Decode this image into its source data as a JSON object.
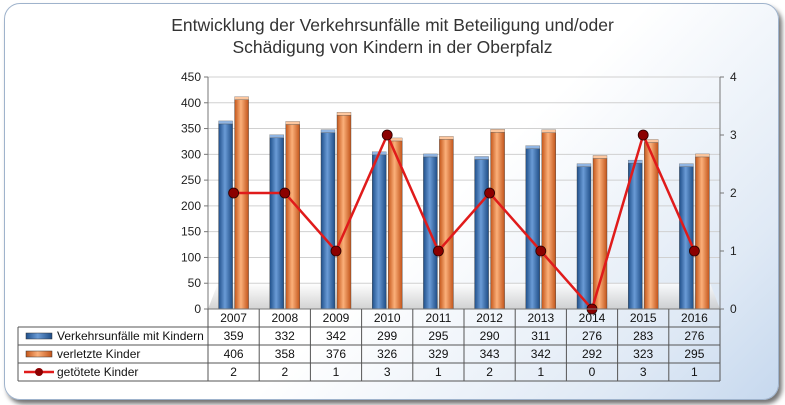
{
  "chart_data": {
    "type": "bar",
    "title": [
      "Entwicklung der Verkehrsunfälle mit Beteiligung und/oder",
      "Schädigung von Kindern in der Oberpfalz"
    ],
    "categories": [
      "2007",
      "2008",
      "2009",
      "2010",
      "2011",
      "2012",
      "2013",
      "2014",
      "2015",
      "2016"
    ],
    "series": [
      {
        "name": "Verkehrsunfälle mit Kindern",
        "kind": "bar",
        "axis": "left",
        "color": "#3d74b8",
        "values": [
          359,
          332,
          342,
          299,
          295,
          290,
          311,
          276,
          283,
          276
        ]
      },
      {
        "name": "verletzte Kinder",
        "kind": "bar",
        "axis": "left",
        "color": "#ee7a2a",
        "values": [
          406,
          358,
          376,
          326,
          329,
          343,
          342,
          292,
          323,
          295
        ]
      },
      {
        "name": "getötete Kinder",
        "kind": "line",
        "axis": "right",
        "color": "#e01b1b",
        "marker_color": "#8b0000",
        "values": [
          2,
          2,
          1,
          3,
          1,
          2,
          1,
          0,
          3,
          1
        ]
      }
    ],
    "y_left": {
      "min": 0,
      "max": 450,
      "ticks": [
        0,
        50,
        100,
        150,
        200,
        250,
        300,
        350,
        400,
        450
      ]
    },
    "y_right": {
      "min": 0,
      "max": 4,
      "ticks": [
        0,
        1,
        2,
        3,
        4
      ]
    },
    "grid": true,
    "legend": "data-table"
  }
}
